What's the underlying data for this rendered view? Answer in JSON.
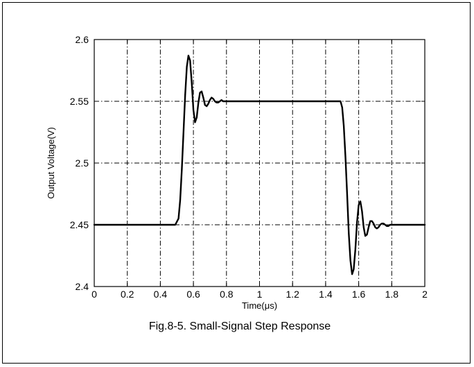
{
  "chart_data": {
    "type": "line",
    "title": "",
    "xlabel": "Time(μs)",
    "ylabel": "Output Voltage(V)",
    "xlim": [
      0,
      2
    ],
    "ylim": [
      2.4,
      2.6
    ],
    "xticks": [
      "0",
      "0.2",
      "0.4",
      "0.6",
      "0.8",
      "1",
      "1.2",
      "1.4",
      "1.6",
      "1.8",
      "2"
    ],
    "yticks": [
      "2.4",
      "2.45",
      "2.5",
      "2.55",
      "2.6"
    ],
    "grid": true,
    "caption": "Fig.8-5. Small-Signal Step Response",
    "series": [
      {
        "x": [
          0,
          0.49,
          0.51,
          0.52,
          0.53,
          0.54,
          0.55,
          0.56,
          0.57,
          0.58,
          0.59,
          0.6,
          0.61,
          0.62,
          0.63,
          0.64,
          0.65,
          0.66,
          0.67,
          0.68,
          0.69,
          0.7,
          0.71,
          0.72,
          0.73,
          0.74,
          0.75,
          0.76,
          0.77,
          0.78,
          0.79,
          0.8,
          1.0,
          1.2,
          1.4,
          1.49,
          1.5,
          1.51,
          1.52,
          1.53,
          1.54,
          1.55,
          1.56,
          1.57,
          1.58,
          1.59,
          1.6,
          1.61,
          1.62,
          1.63,
          1.64,
          1.65,
          1.66,
          1.67,
          1.68,
          1.69,
          1.7,
          1.71,
          1.72,
          1.73,
          1.74,
          1.75,
          1.76,
          1.77,
          1.78,
          1.79,
          1.8,
          1.82,
          1.84,
          1.85,
          2.0
        ],
        "y": [
          2.45,
          2.45,
          2.455,
          2.47,
          2.495,
          2.525,
          2.555,
          2.578,
          2.587,
          2.583,
          2.565,
          2.543,
          2.533,
          2.537,
          2.549,
          2.557,
          2.558,
          2.553,
          2.547,
          2.546,
          2.548,
          2.551,
          2.553,
          2.552,
          2.55,
          2.549,
          2.549,
          2.55,
          2.551,
          2.55,
          2.55,
          2.55,
          2.55,
          2.55,
          2.55,
          2.55,
          2.545,
          2.53,
          2.505,
          2.475,
          2.443,
          2.421,
          2.41,
          2.414,
          2.43,
          2.452,
          2.466,
          2.469,
          2.461,
          2.448,
          2.441,
          2.442,
          2.448,
          2.453,
          2.453,
          2.451,
          2.448,
          2.447,
          2.448,
          2.45,
          2.451,
          2.451,
          2.45,
          2.449,
          2.449,
          2.45,
          2.45,
          2.45,
          2.45,
          2.45,
          2.45
        ]
      }
    ]
  }
}
